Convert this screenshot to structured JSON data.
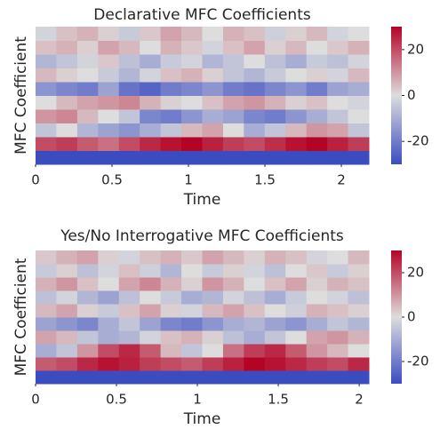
{
  "chart_data": [
    {
      "type": "heatmap",
      "title": "Declarative MFC Coefficients",
      "xlabel": "Time",
      "ylabel": "MFC Coefficient",
      "xlim": [
        0,
        2.18
      ],
      "xticks": [
        0,
        0.5,
        1,
        1.5,
        2
      ],
      "clim": [
        -30,
        30
      ],
      "cticks": [
        -20,
        0,
        20
      ],
      "colors": [
        "#3b4cc0",
        "#dddddd",
        "#b40426"
      ],
      "values": [
        [
          -30,
          -30,
          -30,
          -30,
          -30,
          -30,
          -30,
          -30,
          -30,
          -30,
          -30,
          -30,
          -30,
          -30,
          -30,
          -30
        ],
        [
          20,
          22,
          18,
          15,
          20,
          25,
          28,
          30,
          26,
          22,
          20,
          24,
          28,
          30,
          26,
          22
        ],
        [
          -5,
          0,
          -8,
          -12,
          -15,
          -10,
          -5,
          5,
          8,
          0,
          -10,
          -5,
          5,
          10,
          8,
          -5
        ],
        [
          10,
          12,
          5,
          0,
          -5,
          -18,
          -20,
          -15,
          -10,
          -12,
          -18,
          -20,
          -15,
          -10,
          -5,
          0
        ],
        [
          0,
          5,
          8,
          10,
          12,
          6,
          2,
          0,
          4,
          8,
          10,
          6,
          2,
          4,
          0,
          -2
        ],
        [
          -15,
          -18,
          -20,
          -12,
          -22,
          -25,
          -20,
          -18,
          -15,
          -20,
          -22,
          -18,
          -15,
          -20,
          -12,
          -10
        ],
        [
          5,
          2,
          0,
          -4,
          -8,
          -2,
          4,
          6,
          2,
          -5,
          -8,
          -4,
          0,
          2,
          -2,
          5
        ],
        [
          -8,
          -5,
          -2,
          3,
          -6,
          -10,
          -4,
          -2,
          -8,
          -5,
          0,
          -6,
          -10,
          -4,
          -6,
          -2
        ],
        [
          4,
          6,
          2,
          8,
          5,
          0,
          6,
          3,
          -2,
          4,
          8,
          2,
          5,
          0,
          3,
          6
        ],
        [
          -2,
          4,
          6,
          2,
          -4,
          3,
          8,
          5,
          0,
          6,
          4,
          -3,
          2,
          5,
          -2,
          0
        ]
      ]
    },
    {
      "type": "heatmap",
      "title": "Yes/No Interrogative MFC Coefficients",
      "xlabel": "Time",
      "ylabel": "MFC Coefficient",
      "xlim": [
        0,
        2.06
      ],
      "xticks": [
        0,
        0.5,
        1,
        1.5,
        2
      ],
      "clim": [
        -30,
        30
      ],
      "cticks": [
        -20,
        0,
        20
      ],
      "colors": [
        "#3b4cc0",
        "#dddddd",
        "#b40426"
      ],
      "values": [
        [
          -30,
          -30,
          -30,
          -30,
          -30,
          -30,
          -30,
          -30,
          -30,
          -30,
          -30,
          -30,
          -30,
          -30,
          -30,
          -30
        ],
        [
          18,
          20,
          25,
          28,
          26,
          22,
          20,
          18,
          22,
          26,
          30,
          28,
          25,
          22,
          20,
          25
        ],
        [
          -10,
          -5,
          10,
          20,
          25,
          18,
          5,
          -5,
          0,
          15,
          22,
          25,
          18,
          10,
          5,
          0
        ],
        [
          8,
          5,
          -5,
          -10,
          -8,
          -2,
          4,
          6,
          2,
          -6,
          -10,
          -5,
          0,
          8,
          10,
          6
        ],
        [
          -12,
          -15,
          -18,
          -10,
          -5,
          -12,
          -18,
          -20,
          -15,
          -10,
          -8,
          -12,
          -15,
          -10,
          -5,
          -8
        ],
        [
          5,
          8,
          2,
          -4,
          4,
          8,
          2,
          -2,
          5,
          8,
          4,
          0,
          -3,
          6,
          4,
          2
        ],
        [
          -6,
          -2,
          -8,
          -12,
          -6,
          0,
          -4,
          -10,
          -8,
          -2,
          -6,
          -10,
          -4,
          0,
          -2,
          -6
        ],
        [
          6,
          10,
          4,
          0,
          8,
          12,
          6,
          2,
          10,
          6,
          0,
          4,
          8,
          2,
          6,
          4
        ],
        [
          -4,
          2,
          -6,
          -2,
          4,
          -3,
          -8,
          0,
          -4,
          2,
          -2,
          -6,
          0,
          3,
          -4,
          2
        ],
        [
          3,
          6,
          8,
          2,
          -2,
          4,
          6,
          3,
          8,
          5,
          2,
          6,
          4,
          -2,
          0,
          5
        ]
      ]
    }
  ]
}
